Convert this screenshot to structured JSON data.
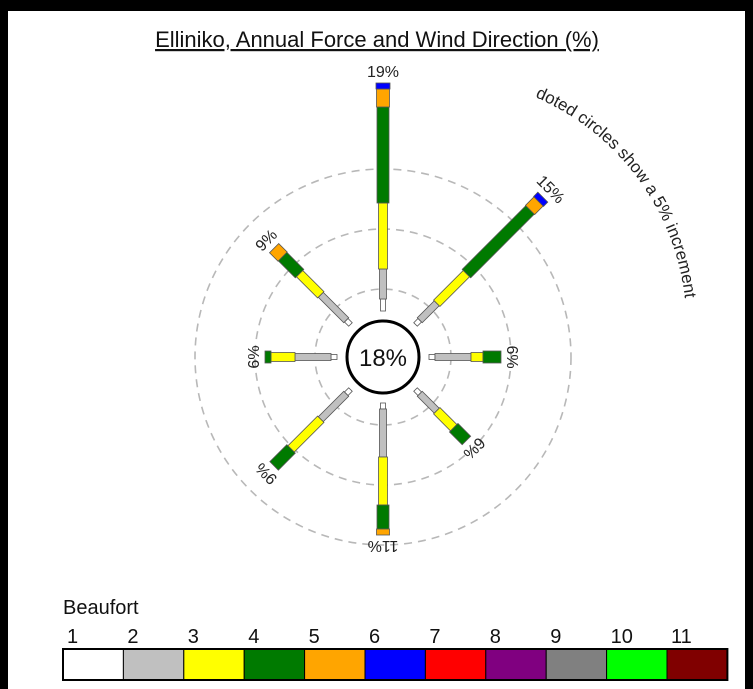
{
  "chart_data": {
    "type": "wind-rose",
    "title": "Elliniko, Annual Force and Wind Direction (%)",
    "calm_label": "18%",
    "note": "doted circles show a 5% increment",
    "legend_title": "Beaufort",
    "legend": [
      {
        "label": "1",
        "color": "#ffffff"
      },
      {
        "label": "2",
        "color": "#c0c0c0"
      },
      {
        "label": "3",
        "color": "#ffff00"
      },
      {
        "label": "4",
        "color": "#007a00"
      },
      {
        "label": "5",
        "color": "#ffa500"
      },
      {
        "label": "6",
        "color": "#0000ff"
      },
      {
        "label": "7",
        "color": "#ff0000"
      },
      {
        "label": "8",
        "color": "#800080"
      },
      {
        "label": "9",
        "color": "#808080"
      },
      {
        "label": "10",
        "color": "#00ff00"
      },
      {
        "label": "11",
        "color": "#800000"
      }
    ],
    "directions": [
      {
        "angle": 0,
        "label": "19%",
        "value": 19,
        "segments": [
          1,
          2.5,
          5.5,
          8,
          1.5,
          0.5
        ]
      },
      {
        "angle": 45,
        "label": "15%",
        "value": 15,
        "segments": [
          0.5,
          2,
          3.5,
          7.5,
          1,
          0.5
        ]
      },
      {
        "angle": 90,
        "label": "6%",
        "value": 6,
        "segments": [
          0.5,
          3,
          1,
          1.5
        ]
      },
      {
        "angle": 135,
        "label": "6%",
        "value": 6,
        "segments": [
          0.5,
          2,
          2,
          1.5
        ]
      },
      {
        "angle": 180,
        "label": "11%",
        "value": 11,
        "segments": [
          0.5,
          4,
          4,
          2,
          0.5
        ]
      },
      {
        "angle": 225,
        "label": "9%",
        "value": 9,
        "segments": [
          0.5,
          3,
          3.5,
          2
        ]
      },
      {
        "angle": 270,
        "label": "6%",
        "value": 6,
        "segments": [
          0.5,
          3,
          2,
          0.5
        ]
      },
      {
        "angle": 315,
        "label": "9%",
        "value": 9,
        "segments": [
          0.5,
          3,
          2.5,
          2,
          1
        ]
      }
    ]
  }
}
